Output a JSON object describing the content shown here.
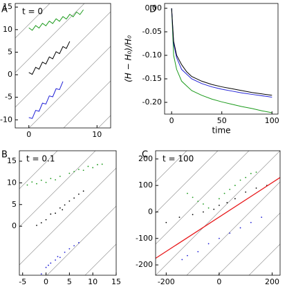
{
  "chart_data": [
    {
      "type": "line",
      "label": "A",
      "annotation": "t = 0",
      "xlim": [
        -2,
        12
      ],
      "ylim": [
        -11.8,
        15.8
      ],
      "xticks": [
        0,
        10
      ],
      "yticks": [
        -10,
        -5,
        0,
        5,
        10,
        15
      ],
      "series": [
        {
          "color": "#1a9a1a",
          "x": [
            0,
            0.5,
            1,
            1.5,
            2,
            2.5,
            3,
            3.5,
            4,
            4.5,
            5,
            5.5,
            6,
            6.5,
            7,
            7.5,
            8
          ],
          "values": [
            10.4,
            9.85,
            10.9,
            10.35,
            11.4,
            10.85,
            11.9,
            11.35,
            12.4,
            11.85,
            12.9,
            12.35,
            13.4,
            12.85,
            13.9,
            13.35,
            14.4
          ]
        },
        {
          "color": "#000000",
          "x": [
            0,
            0.5,
            1,
            1.5,
            2,
            2.5,
            3,
            3.5,
            4,
            4.5,
            5,
            5.5,
            6
          ],
          "values": [
            0.5,
            0.08,
            1.65,
            1.23,
            2.8,
            2.38,
            3.95,
            3.53,
            5.1,
            4.68,
            6.25,
            5.83,
            7.4
          ]
        },
        {
          "color": "#1f1fd6",
          "x": [
            0,
            0.5,
            1,
            1.5,
            2,
            2.5,
            3,
            3.5,
            4,
            4.5,
            5
          ],
          "values": [
            -9.5,
            -9.7,
            -7.9,
            -8.1,
            -6.3,
            -6.5,
            -4.7,
            -4.9,
            -3.1,
            -3.3,
            -1.5
          ]
        }
      ]
    },
    {
      "type": "line",
      "label": "D",
      "xlabel": "time",
      "ylabel": "(H − H₀)/H₀",
      "xlim": [
        -7,
        106
      ],
      "ylim": [
        -0.225,
        0.0103
      ],
      "xticks": [
        0,
        50,
        100
      ],
      "yticks": [
        {
          "value": 0,
          "label": "0.00"
        },
        -0.05,
        {
          "value": -0.1,
          "label": "-0.10"
        },
        -0.15,
        {
          "value": -0.2,
          "label": "-0.20"
        }
      ],
      "series": [
        {
          "color": "#1a9a1a",
          "x": [
            0,
            2,
            5,
            10,
            15,
            20,
            30,
            40,
            50,
            60,
            70,
            80,
            90,
            100
          ],
          "values": [
            0,
            -0.1,
            -0.13,
            -0.155,
            -0.165,
            -0.175,
            -0.185,
            -0.193,
            -0.199,
            -0.204,
            -0.209,
            -0.213,
            -0.218,
            -0.222
          ]
        },
        {
          "color": "#1f1fd6",
          "x": [
            0,
            2,
            5,
            10,
            15,
            20,
            30,
            40,
            50,
            60,
            70,
            80,
            90,
            100
          ],
          "values": [
            0,
            -0.075,
            -0.105,
            -0.13,
            -0.14,
            -0.15,
            -0.16,
            -0.167,
            -0.172,
            -0.176,
            -0.18,
            -0.183,
            -0.186,
            -0.189
          ]
        },
        {
          "color": "#000000",
          "x": [
            0,
            2,
            5,
            10,
            15,
            20,
            30,
            40,
            50,
            60,
            70,
            80,
            90,
            100
          ],
          "values": [
            0,
            -0.07,
            -0.1,
            -0.12,
            -0.135,
            -0.145,
            -0.155,
            -0.162,
            -0.167,
            -0.171,
            -0.175,
            -0.179,
            -0.182,
            -0.185
          ]
        }
      ]
    },
    {
      "type": "scatter",
      "label": "B",
      "annotation": "t = 0.1",
      "xlim": [
        -5.7,
        15
      ],
      "ylim": [
        -11.3,
        17.4
      ],
      "xticks": [
        -5,
        0,
        5,
        10,
        15
      ],
      "yticks": [
        0,
        5,
        10,
        15
      ],
      "series": [
        {
          "color": "#1a9a1a",
          "x": [
            -4,
            -3,
            -2,
            -1,
            0,
            1,
            2,
            3,
            5,
            6,
            7,
            8,
            9,
            10,
            11,
            12
          ],
          "values": [
            9.5,
            10.2,
            9.8,
            10.6,
            10.1,
            11,
            10.7,
            11.5,
            12.2,
            12.6,
            13.1,
            12.9,
            13.8,
            13.5,
            14.2,
            14.3
          ]
        },
        {
          "color": "#000000",
          "x": [
            -2,
            -1,
            0,
            1,
            2,
            3,
            3.5,
            4,
            5,
            6,
            7,
            8
          ],
          "values": [
            0.2,
            0.8,
            1.5,
            2.8,
            3,
            4.2,
            3.8,
            4.9,
            5.8,
            6.5,
            7.4,
            8.1
          ]
        },
        {
          "color": "#1f1fd6",
          "x": [
            -1,
            0,
            0.5,
            1,
            2,
            2.5,
            3,
            4,
            5,
            6,
            7
          ],
          "values": [
            -11,
            -9.5,
            -9,
            -8.5,
            -7.8,
            -7,
            -7.2,
            -6,
            -5.2,
            -4.5,
            -3.8
          ]
        }
      ]
    },
    {
      "type": "scatter",
      "label": "C",
      "annotation": "t = 100",
      "xlim": [
        -240,
        230
      ],
      "ylim": [
        -239,
        231
      ],
      "xticks": [
        -200,
        0,
        200
      ],
      "yticks": [
        -200,
        -100,
        0,
        100,
        200
      ],
      "series": [
        {
          "color": "#1a9a1a",
          "x": [
            -120,
            -100,
            -80,
            -60,
            -40,
            0,
            20,
            40,
            60,
            80,
            100,
            120,
            140
          ],
          "values": [
            70,
            55,
            40,
            30,
            15,
            50,
            70,
            85,
            100,
            120,
            130,
            145,
            150
          ]
        },
        {
          "color": "#000000",
          "x": [
            -200,
            -150,
            -100,
            -60,
            -20,
            0,
            30,
            60,
            100,
            140,
            180
          ],
          "values": [
            -40,
            -20,
            -10,
            0,
            10,
            25,
            35,
            50,
            75,
            90,
            100
          ]
        },
        {
          "color": "#1f1fd6",
          "x": [
            -140,
            -120,
            -80,
            -40,
            0,
            40,
            80,
            120,
            160
          ],
          "values": [
            -180,
            -165,
            -150,
            -120,
            -100,
            -80,
            -60,
            -40,
            -20
          ]
        },
        {
          "color": "#e8191b",
          "type": "line",
          "x": [
            -240,
            230
          ],
          "values": [
            -175,
            130
          ]
        }
      ]
    }
  ]
}
